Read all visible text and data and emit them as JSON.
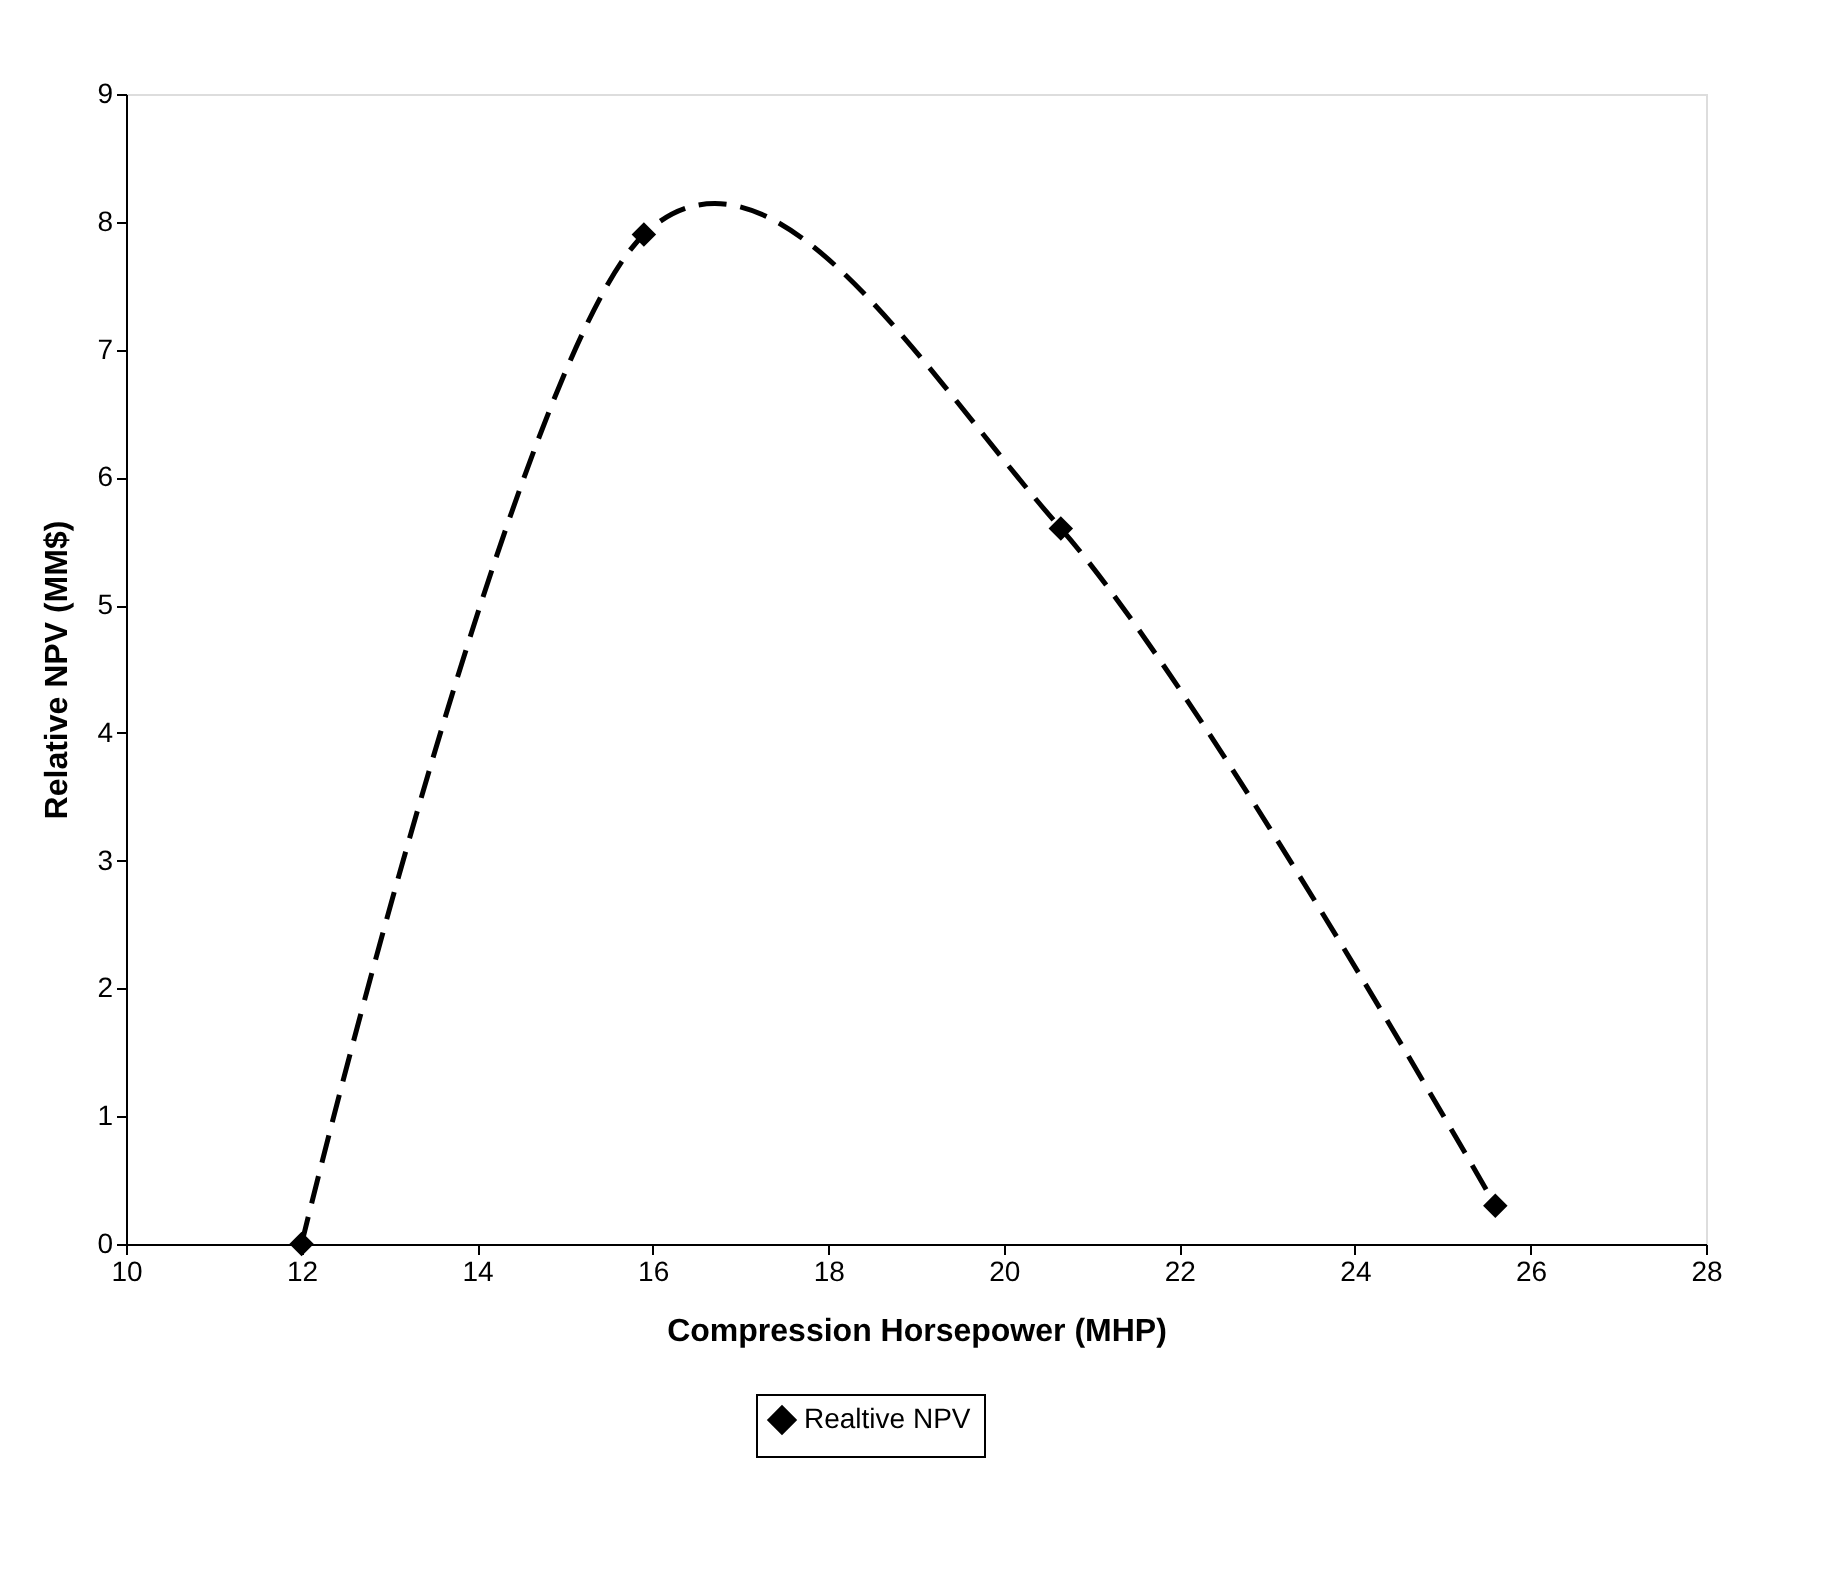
{
  "chart_data": {
    "type": "line",
    "xlabel": "Compression Horsepower (MHP)",
    "ylabel": "Relative NPV (MM$)",
    "x": [
      12,
      15.9,
      20.65,
      25.6
    ],
    "series": [
      {
        "name": "Realtive NPV",
        "color": "#000000",
        "values": [
          0,
          7.9,
          5.6,
          0.3
        ]
      }
    ],
    "xlim": [
      10,
      28
    ],
    "xticks": [
      10,
      12,
      14,
      16,
      18,
      20,
      22,
      24,
      26,
      28
    ],
    "ylim": [
      0,
      9
    ],
    "yticks": [
      0,
      1,
      2,
      3,
      4,
      5,
      6,
      7,
      8,
      9
    ],
    "grid": false,
    "legend": "bottom",
    "marker": "diamond",
    "line_style": "dashed"
  }
}
